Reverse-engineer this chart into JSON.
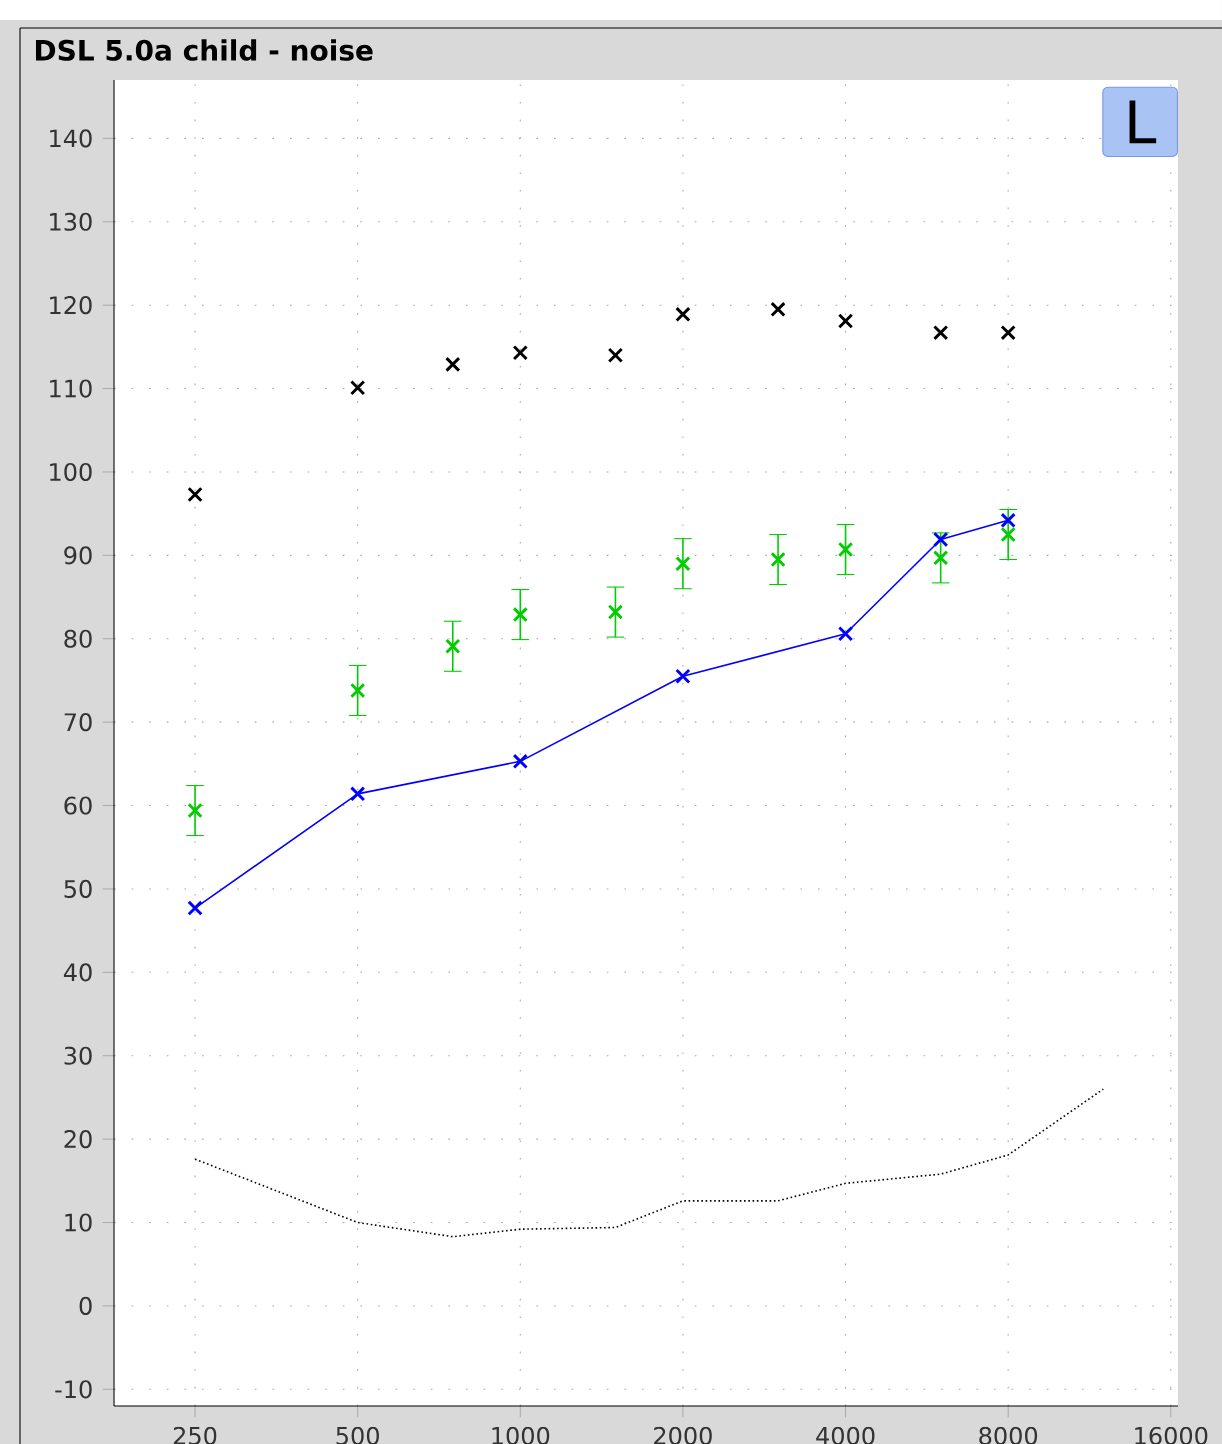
{
  "chart_data": {
    "type": "scatter",
    "title": "DSL 5.0a child - noise",
    "annotations": [
      "L"
    ],
    "log": "x",
    "grid": true,
    "xlim": [
      177,
      16500
    ],
    "ylim": [
      -12,
      147
    ],
    "xticks": [
      250,
      500,
      1000,
      2000,
      4000,
      8000,
      16000
    ],
    "yticks": [
      -10,
      0,
      10,
      20,
      30,
      40,
      50,
      60,
      70,
      80,
      90,
      100,
      110,
      120,
      130,
      140
    ],
    "series": [
      {
        "color": "#000000",
        "marker": "cross",
        "x": [
          250,
          500,
          750,
          1000,
          1500,
          2000,
          3000,
          4000,
          6000,
          8000
        ],
        "values": [
          97.3,
          110.1,
          112.9,
          114.3,
          114,
          118.9,
          119.5,
          118.1,
          116.7,
          116.7
        ]
      },
      {
        "color": "#00cc00",
        "marker": "cross",
        "x": [
          250,
          500,
          750,
          1000,
          1500,
          2000,
          3000,
          4000,
          6000,
          8000
        ],
        "values": [
          59.4,
          73.8,
          79.1,
          82.9,
          83.2,
          89,
          89.5,
          90.7,
          89.7,
          92.5
        ],
        "errors": [
          3,
          3,
          3,
          3,
          3,
          3,
          3,
          3,
          3,
          3
        ]
      },
      {
        "type": "line",
        "color": "#0000ff",
        "marker": "cross",
        "line_style": "solid",
        "x": [
          250,
          500,
          1000,
          2000,
          4000,
          6000,
          8000
        ],
        "values": [
          47.7,
          61.4,
          65.3,
          75.5,
          80.6,
          91.9,
          94.2
        ]
      },
      {
        "type": "line",
        "color": "#000000",
        "marker": "none",
        "line_style": "dotted",
        "x": [
          250,
          500,
          750,
          1000,
          1500,
          2000,
          3000,
          4000,
          6000,
          8000,
          12000
        ],
        "values": [
          17.6,
          10,
          8.3,
          9.2,
          9.4,
          12.6,
          12.6,
          14.7,
          15.8,
          18.1,
          26
        ]
      }
    ]
  }
}
